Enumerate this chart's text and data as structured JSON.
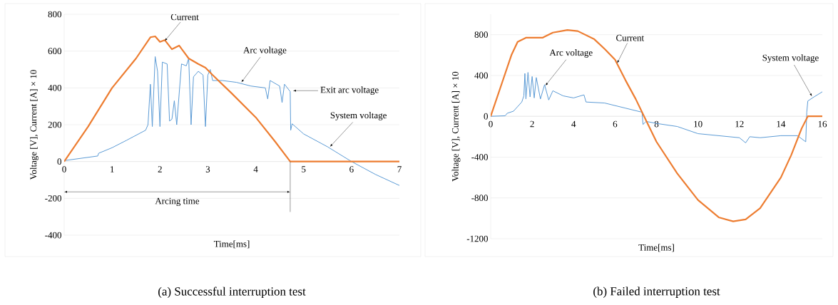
{
  "chart_data": [
    {
      "type": "line",
      "title": "(a) Successful interruption test",
      "xlabel": "Time[ms]",
      "ylabel": "Voltage [V], Current [A] × 10",
      "xlim": [
        0,
        7
      ],
      "ylim": [
        -400,
        800
      ],
      "xticks": [
        0,
        1,
        2,
        3,
        4,
        5,
        6,
        7
      ],
      "yticks": [
        -400,
        -200,
        0,
        200,
        400,
        600,
        800
      ],
      "grid": "y",
      "series": [
        {
          "color": "#5b9bd5",
          "x": [
            0,
            0.7,
            0.72,
            1,
            1.3,
            1.7,
            1.75,
            1.8,
            1.84,
            1.9,
            1.95,
            2.0,
            2.05,
            2.15,
            2.2,
            2.25,
            2.3,
            2.35,
            2.45,
            2.55,
            2.6,
            2.65,
            2.7,
            2.8,
            2.9,
            2.95,
            3.0,
            3.05,
            3.1,
            3.3,
            3.6,
            3.9,
            4.2,
            4.25,
            4.3,
            4.5,
            4.55,
            4.6,
            4.72,
            4.73,
            4.76,
            5.0,
            5.5,
            6.0,
            6.5,
            7.0
          ],
          "values": [
            5,
            30,
            45,
            75,
            115,
            170,
            200,
            420,
            190,
            570,
            490,
            190,
            540,
            530,
            220,
            230,
            330,
            200,
            530,
            520,
            560,
            200,
            460,
            490,
            470,
            190,
            470,
            500,
            440,
            440,
            430,
            410,
            400,
            340,
            440,
            410,
            320,
            420,
            380,
            170,
            205,
            150,
            80,
            0,
            -70,
            -130
          ]
        },
        {
          "color": "#ed7d31",
          "x": [
            0,
            0.5,
            1,
            1.5,
            1.8,
            1.9,
            2.0,
            2.1,
            2.25,
            2.4,
            2.6,
            2.8,
            2.95,
            3.1,
            3.5,
            4.0,
            4.4,
            4.72,
            5,
            6,
            7
          ],
          "values": [
            0,
            190,
            400,
            560,
            675,
            680,
            650,
            660,
            610,
            630,
            560,
            530,
            510,
            470,
            370,
            240,
            110,
            0,
            0,
            0,
            0
          ]
        }
      ],
      "annotations": [
        {
          "text": "Current",
          "x": 2.1,
          "y": 655
        },
        {
          "text": "Arc voltage",
          "x": 3.7,
          "y": 430
        },
        {
          "text": "Exit arc voltage",
          "x": 4.78,
          "y": 385
        },
        {
          "text": "System voltage",
          "x": 5.55,
          "y": 80
        }
      ],
      "ref_lines": [
        {
          "axis": "x",
          "value": 4.72,
          "label": "Arcing time",
          "color": "#000000"
        }
      ]
    },
    {
      "type": "line",
      "title": "(b) Failed interruption test",
      "xlabel": "Time[ms]",
      "ylabel": "Voltage [V], Current [A] × 10",
      "xlim": [
        0,
        16
      ],
      "ylim": [
        -1200,
        1000
      ],
      "xticks": [
        0,
        2,
        4,
        6,
        8,
        10,
        12,
        14,
        16
      ],
      "yticks": [
        -1200,
        -800,
        -400,
        0,
        400,
        800
      ],
      "grid": "y",
      "series": [
        {
          "color": "#5b9bd5",
          "x": [
            0,
            0.7,
            0.8,
            1.1,
            1.5,
            1.6,
            1.65,
            1.7,
            1.8,
            1.9,
            2.0,
            2.1,
            2.2,
            2.4,
            2.6,
            2.8,
            3.0,
            3.5,
            4.0,
            4.5,
            4.6,
            5.5,
            6.5,
            7.3,
            7.35,
            7.5,
            8,
            9,
            10,
            11,
            12,
            12.3,
            12.5,
            13,
            14,
            14.8,
            15.2,
            15.25,
            15.3,
            15.6,
            16
          ],
          "values": [
            0,
            5,
            30,
            50,
            140,
            200,
            420,
            170,
            430,
            190,
            390,
            180,
            380,
            170,
            310,
            160,
            250,
            200,
            180,
            210,
            140,
            130,
            80,
            40,
            -80,
            -50,
            -70,
            -100,
            -170,
            -190,
            -210,
            -260,
            -200,
            -210,
            -190,
            -190,
            -250,
            40,
            150,
            190,
            240
          ]
        },
        {
          "color": "#ed7d31",
          "x": [
            0,
            0.5,
            1,
            1.3,
            1.7,
            2.5,
            3,
            3.7,
            4.2,
            5,
            5.5,
            6,
            6.5,
            7,
            7.4,
            8,
            9,
            10,
            11,
            11.7,
            12.3,
            13,
            14,
            14.5,
            15,
            15.3,
            16
          ],
          "values": [
            0,
            300,
            600,
            730,
            770,
            770,
            820,
            845,
            835,
            755,
            660,
            555,
            355,
            168,
            0,
            -250,
            -560,
            -820,
            -990,
            -1030,
            -1010,
            -900,
            -600,
            -380,
            -120,
            0,
            0
          ]
        }
      ],
      "annotations": [
        {
          "text": "Current",
          "x": 6.1,
          "y": 520
        },
        {
          "text": "Arc voltage",
          "x": 2.64,
          "y": 301
        },
        {
          "text": "System voltage",
          "x": 15.5,
          "y": 195
        }
      ]
    }
  ]
}
